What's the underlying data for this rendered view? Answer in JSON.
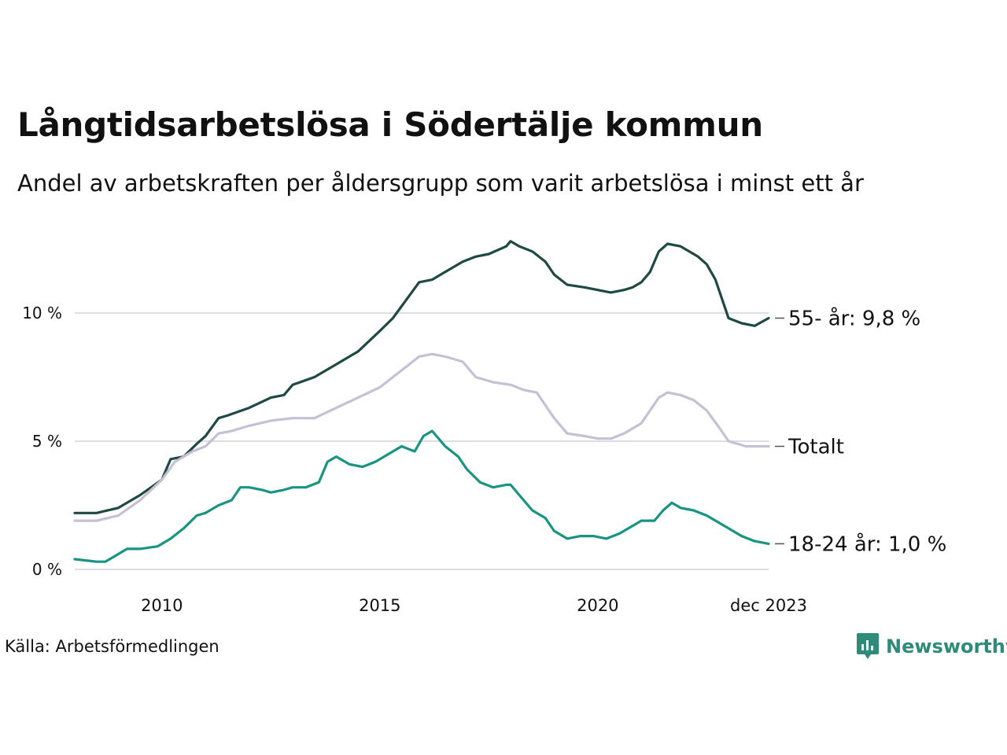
{
  "title": "Långtidsarbetslösa i Södertälje kommun",
  "subtitle": "Andel av arbetskraften per åldersgrupp som varit arbetslösa i minst ett år",
  "source": "Källa: Arbetsförmedlingen",
  "brand": {
    "name": "Newsworthy",
    "icon": "newsworthy-logo-icon"
  },
  "colors": {
    "older": "#1f4a44",
    "total": "#c3c1d3",
    "young": "#1a9482",
    "grid": "#dddde3",
    "brand": "#2e8b7a"
  },
  "chart_data": {
    "type": "line",
    "title": "Långtidsarbetslösa i Södertälje kommun",
    "xlabel": "",
    "ylabel": "",
    "x_range": [
      2008.0,
      2023.92
    ],
    "ylim": [
      0,
      13
    ],
    "y_ticks": [
      {
        "value": 0,
        "label": "0 %"
      },
      {
        "value": 5,
        "label": "5 %"
      },
      {
        "value": 10,
        "label": "10 %"
      }
    ],
    "x_ticks": [
      {
        "value": 2010,
        "label": "2010"
      },
      {
        "value": 2015,
        "label": "2015"
      },
      {
        "value": 2020,
        "label": "2020"
      },
      {
        "value": 2023.92,
        "label": "dec 2023"
      }
    ],
    "series": [
      {
        "name": "55- år",
        "end_label": "55- år: 9,8 %",
        "color_key": "older",
        "points": [
          [
            2008.0,
            2.2
          ],
          [
            2008.5,
            2.2
          ],
          [
            2009.0,
            2.4
          ],
          [
            2009.5,
            2.9
          ],
          [
            2010.0,
            3.5
          ],
          [
            2010.2,
            4.3
          ],
          [
            2010.5,
            4.4
          ],
          [
            2010.8,
            4.9
          ],
          [
            2011.0,
            5.2
          ],
          [
            2011.3,
            5.9
          ],
          [
            2011.5,
            6.0
          ],
          [
            2012.0,
            6.3
          ],
          [
            2012.5,
            6.7
          ],
          [
            2012.8,
            6.8
          ],
          [
            2013.0,
            7.2
          ],
          [
            2013.5,
            7.5
          ],
          [
            2014.0,
            8.0
          ],
          [
            2014.5,
            8.5
          ],
          [
            2015.0,
            9.3
          ],
          [
            2015.3,
            9.8
          ],
          [
            2015.6,
            10.5
          ],
          [
            2015.9,
            11.2
          ],
          [
            2016.2,
            11.3
          ],
          [
            2016.5,
            11.6
          ],
          [
            2016.9,
            12.0
          ],
          [
            2017.2,
            12.2
          ],
          [
            2017.5,
            12.3
          ],
          [
            2017.9,
            12.6
          ],
          [
            2018.0,
            12.8
          ],
          [
            2018.2,
            12.6
          ],
          [
            2018.5,
            12.4
          ],
          [
            2018.8,
            12.0
          ],
          [
            2019.0,
            11.5
          ],
          [
            2019.3,
            11.1
          ],
          [
            2019.7,
            11.0
          ],
          [
            2020.0,
            10.9
          ],
          [
            2020.3,
            10.8
          ],
          [
            2020.6,
            10.9
          ],
          [
            2020.8,
            11.0
          ],
          [
            2021.0,
            11.2
          ],
          [
            2021.2,
            11.6
          ],
          [
            2021.4,
            12.4
          ],
          [
            2021.6,
            12.7
          ],
          [
            2021.9,
            12.6
          ],
          [
            2022.1,
            12.4
          ],
          [
            2022.3,
            12.2
          ],
          [
            2022.5,
            11.9
          ],
          [
            2022.7,
            11.3
          ],
          [
            2022.9,
            10.3
          ],
          [
            2023.0,
            9.8
          ],
          [
            2023.3,
            9.6
          ],
          [
            2023.6,
            9.5
          ],
          [
            2023.92,
            9.8
          ]
        ]
      },
      {
        "name": "Totalt",
        "end_label": "Totalt",
        "color_key": "total",
        "points": [
          [
            2008.0,
            1.9
          ],
          [
            2008.5,
            1.9
          ],
          [
            2009.0,
            2.1
          ],
          [
            2009.5,
            2.7
          ],
          [
            2010.0,
            3.5
          ],
          [
            2010.3,
            4.2
          ],
          [
            2010.7,
            4.6
          ],
          [
            2011.0,
            4.8
          ],
          [
            2011.3,
            5.3
          ],
          [
            2011.6,
            5.4
          ],
          [
            2012.0,
            5.6
          ],
          [
            2012.5,
            5.8
          ],
          [
            2013.0,
            5.9
          ],
          [
            2013.5,
            5.9
          ],
          [
            2014.0,
            6.3
          ],
          [
            2014.5,
            6.7
          ],
          [
            2015.0,
            7.1
          ],
          [
            2015.3,
            7.5
          ],
          [
            2015.6,
            7.9
          ],
          [
            2015.9,
            8.3
          ],
          [
            2016.2,
            8.4
          ],
          [
            2016.5,
            8.3
          ],
          [
            2016.9,
            8.1
          ],
          [
            2017.2,
            7.5
          ],
          [
            2017.6,
            7.3
          ],
          [
            2018.0,
            7.2
          ],
          [
            2018.3,
            7.0
          ],
          [
            2018.6,
            6.9
          ],
          [
            2018.8,
            6.4
          ],
          [
            2019.0,
            5.9
          ],
          [
            2019.3,
            5.3
          ],
          [
            2019.7,
            5.2
          ],
          [
            2020.0,
            5.1
          ],
          [
            2020.3,
            5.1
          ],
          [
            2020.6,
            5.3
          ],
          [
            2020.8,
            5.5
          ],
          [
            2021.0,
            5.7
          ],
          [
            2021.2,
            6.2
          ],
          [
            2021.4,
            6.7
          ],
          [
            2021.6,
            6.9
          ],
          [
            2021.9,
            6.8
          ],
          [
            2022.2,
            6.6
          ],
          [
            2022.5,
            6.2
          ],
          [
            2022.8,
            5.5
          ],
          [
            2023.0,
            5.0
          ],
          [
            2023.4,
            4.8
          ],
          [
            2023.92,
            4.8
          ]
        ]
      },
      {
        "name": "18-24 år",
        "end_label": "18-24 år: 1,0 %",
        "color_key": "young",
        "points": [
          [
            2008.0,
            0.4
          ],
          [
            2008.5,
            0.3
          ],
          [
            2008.7,
            0.3
          ],
          [
            2008.9,
            0.5
          ],
          [
            2009.2,
            0.8
          ],
          [
            2009.5,
            0.8
          ],
          [
            2009.9,
            0.9
          ],
          [
            2010.2,
            1.2
          ],
          [
            2010.5,
            1.6
          ],
          [
            2010.8,
            2.1
          ],
          [
            2011.0,
            2.2
          ],
          [
            2011.3,
            2.5
          ],
          [
            2011.6,
            2.7
          ],
          [
            2011.8,
            3.2
          ],
          [
            2012.0,
            3.2
          ],
          [
            2012.3,
            3.1
          ],
          [
            2012.5,
            3.0
          ],
          [
            2012.8,
            3.1
          ],
          [
            2013.0,
            3.2
          ],
          [
            2013.3,
            3.2
          ],
          [
            2013.6,
            3.4
          ],
          [
            2013.8,
            4.2
          ],
          [
            2014.0,
            4.4
          ],
          [
            2014.3,
            4.1
          ],
          [
            2014.6,
            4.0
          ],
          [
            2014.9,
            4.2
          ],
          [
            2015.2,
            4.5
          ],
          [
            2015.5,
            4.8
          ],
          [
            2015.8,
            4.6
          ],
          [
            2016.0,
            5.2
          ],
          [
            2016.2,
            5.4
          ],
          [
            2016.5,
            4.8
          ],
          [
            2016.8,
            4.4
          ],
          [
            2017.0,
            3.9
          ],
          [
            2017.3,
            3.4
          ],
          [
            2017.6,
            3.2
          ],
          [
            2017.9,
            3.3
          ],
          [
            2018.0,
            3.3
          ],
          [
            2018.2,
            2.9
          ],
          [
            2018.5,
            2.3
          ],
          [
            2018.8,
            2.0
          ],
          [
            2019.0,
            1.5
          ],
          [
            2019.3,
            1.2
          ],
          [
            2019.6,
            1.3
          ],
          [
            2019.9,
            1.3
          ],
          [
            2020.2,
            1.2
          ],
          [
            2020.5,
            1.4
          ],
          [
            2020.8,
            1.7
          ],
          [
            2021.0,
            1.9
          ],
          [
            2021.3,
            1.9
          ],
          [
            2021.5,
            2.3
          ],
          [
            2021.7,
            2.6
          ],
          [
            2021.9,
            2.4
          ],
          [
            2022.2,
            2.3
          ],
          [
            2022.5,
            2.1
          ],
          [
            2022.8,
            1.8
          ],
          [
            2023.0,
            1.6
          ],
          [
            2023.3,
            1.3
          ],
          [
            2023.6,
            1.1
          ],
          [
            2023.92,
            1.0
          ]
        ]
      }
    ]
  }
}
